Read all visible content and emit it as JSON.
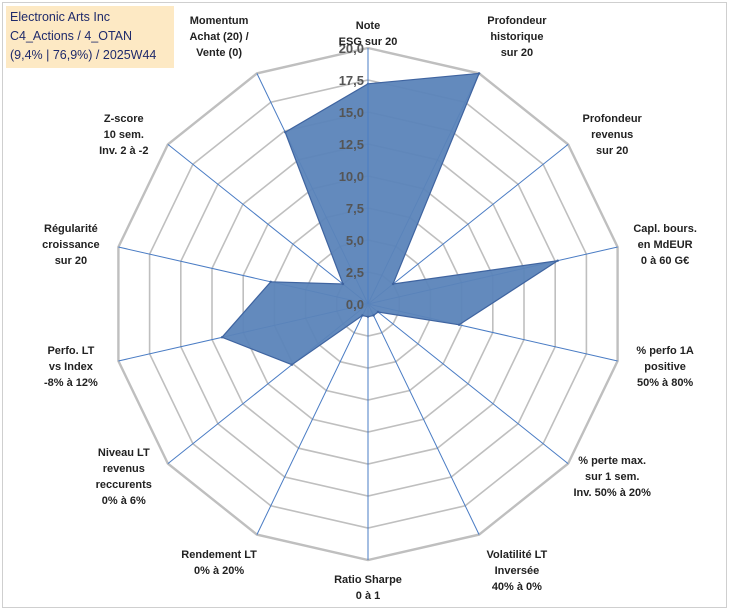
{
  "header": {
    "line1": "Electronic Arts Inc",
    "line2": "C4_Actions / 4_OTAN",
    "line3": "(9,4% | 76,9%) / 2025W44"
  },
  "chart_data": {
    "type": "radar",
    "title": "Electronic Arts Inc",
    "rlim": [
      0,
      20
    ],
    "ticks": [
      "0,0",
      "2,5",
      "5,0",
      "7,5",
      "10,0",
      "12,5",
      "15,0",
      "17,5",
      "20,0"
    ],
    "fill_color": "#5b84b9",
    "line_color": "#3f64a0",
    "grid_color": "#bfbfbf",
    "axes": [
      {
        "label": [
          "Note",
          "ESG sur 20"
        ],
        "value": 17.2
      },
      {
        "label": [
          "Profondeur",
          "historique",
          "sur 20"
        ],
        "value": 20.0
      },
      {
        "label": [
          "Profondeur",
          "revenus",
          "sur 20"
        ],
        "value": 2.5
      },
      {
        "label": [
          "Capl. bours.",
          "en MdEUR",
          "0 à 60 G€"
        ],
        "value": 15.2
      },
      {
        "label": [
          "% perfo 1A",
          "positive",
          "50% à 80%"
        ],
        "value": 7.3
      },
      {
        "label": [
          "% perte max.",
          "sur 1 sem.",
          "Inv. 50% à 20%"
        ],
        "value": 1.0
      },
      {
        "label": [
          "Volatilité LT",
          "Inversée",
          "40% à 0%"
        ],
        "value": 1.0
      },
      {
        "label": [
          "Ratio Sharpe",
          "0 à 1"
        ],
        "value": 1.0
      },
      {
        "label": [
          "Rendement LT",
          "0% à 20%"
        ],
        "value": 1.0
      },
      {
        "label": [
          "Niveau LT",
          "revenus",
          "reccurents",
          "0% à 6%"
        ],
        "value": 7.6
      },
      {
        "label": [
          "Perfo. LT",
          "vs Index",
          "-8% à 12%"
        ],
        "value": 11.7
      },
      {
        "label": [
          "Régularité",
          "croissance",
          "sur 20"
        ],
        "value": 7.8
      },
      {
        "label": [
          "Z-score",
          "10 sem.",
          "Inv. 2 à -2"
        ],
        "value": 2.5
      },
      {
        "label": [
          "Momentum",
          "Achat (20) /",
          "Vente (0)"
        ],
        "value": 14.9
      }
    ]
  }
}
